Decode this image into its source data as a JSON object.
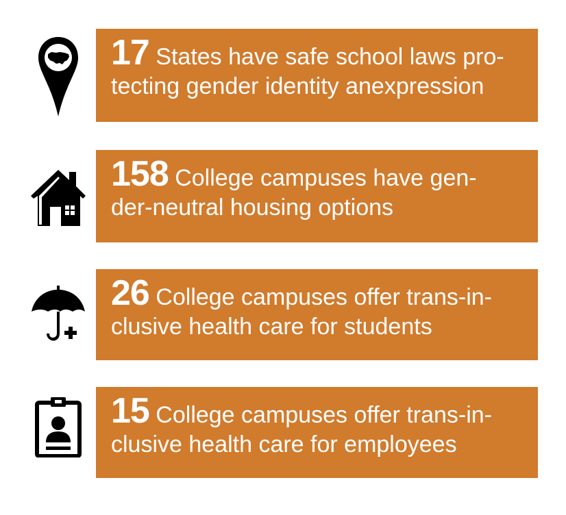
{
  "stats": [
    {
      "number": "17",
      "text": " States have safe school laws pro-­tecting gender identity anexpression",
      "line1": "States have safe school laws pro-",
      "line2": "tecting gender identity anexpression",
      "icon": "map-pin-usa-icon"
    },
    {
      "number": "158",
      "line1": "College campuses have gen-",
      "line2": "der-neutral housing options",
      "icon": "house-icon"
    },
    {
      "number": "26",
      "line1": "College campuses offer trans-in-",
      "line2": "clusive health care for students",
      "icon": "umbrella-plus-icon"
    },
    {
      "number": "15",
      "line1": "College campuses offer trans-in-",
      "line2": "clusive health care for employees",
      "icon": "id-badge-icon"
    }
  ],
  "colors": {
    "card_background": "#d17b2d",
    "card_text": "#ffffff",
    "icon": "#000000"
  }
}
